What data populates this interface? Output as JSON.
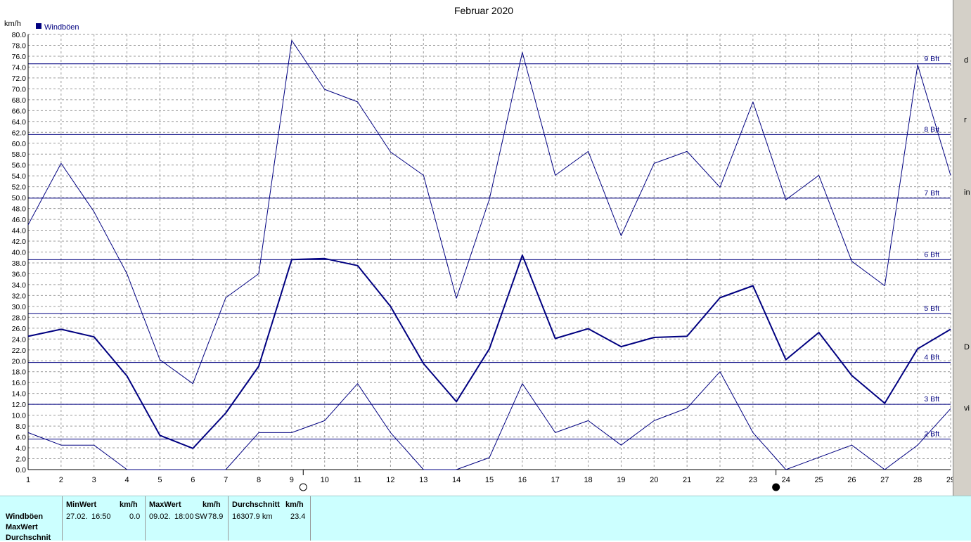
{
  "chart_data": {
    "type": "line",
    "title": "Februar 2020",
    "ylabel": "km/h",
    "xlabel": "",
    "ylim": [
      0,
      80
    ],
    "y_step": 2,
    "x_ticks": [
      1,
      2,
      3,
      4,
      5,
      6,
      7,
      8,
      9,
      10,
      11,
      12,
      13,
      14,
      15,
      16,
      17,
      18,
      19,
      20,
      21,
      22,
      23,
      24,
      25,
      26,
      27,
      28,
      29
    ],
    "grid": true,
    "legend": {
      "position": "top-left",
      "entries": [
        {
          "label": "Windböen",
          "color": "#000080"
        }
      ]
    },
    "series": [
      {
        "role": "max",
        "width": 1,
        "color": "#000080",
        "x": [
          1,
          2,
          3,
          4,
          5,
          6,
          7,
          8,
          9,
          10,
          11,
          12,
          13,
          14,
          15,
          16,
          17,
          18,
          19,
          20,
          21,
          22,
          23,
          24,
          25,
          26,
          27,
          28,
          29
        ],
        "values": [
          45,
          56.3,
          47.4,
          36,
          20.2,
          15.8,
          31.6,
          36,
          78.9,
          69.9,
          67.6,
          58.4,
          54.1,
          31.5,
          49.7,
          76.7,
          54.1,
          58.5,
          43,
          56.3,
          58.5,
          51.9,
          67.6,
          49.6,
          54.1,
          38.3,
          33.8,
          74.4,
          54.1
        ]
      },
      {
        "role": "avg",
        "width": 2,
        "color": "#000080",
        "x": [
          1,
          2,
          3,
          4,
          5,
          6,
          7,
          8,
          9,
          10,
          11,
          12,
          13,
          14,
          15,
          16,
          17,
          18,
          19,
          20,
          21,
          22,
          23,
          24,
          25,
          26,
          27,
          28,
          29
        ],
        "values": [
          24.5,
          25.8,
          24.4,
          17.2,
          6.3,
          3.9,
          10.4,
          19,
          38.6,
          38.8,
          37.5,
          30,
          19.5,
          12.5,
          22.2,
          39.4,
          24.1,
          25.9,
          22.6,
          24.3,
          24.5,
          31.6,
          33.8,
          20.2,
          25.2,
          17.3,
          12.2,
          22.2,
          25.8
        ]
      },
      {
        "role": "min",
        "width": 1,
        "color": "#000080",
        "x": [
          1,
          2,
          3,
          4,
          5,
          6,
          7,
          8,
          9,
          10,
          11,
          12,
          13,
          14,
          15,
          16,
          17,
          18,
          19,
          20,
          21,
          22,
          23,
          24,
          25,
          26,
          27,
          28,
          29
        ],
        "values": [
          6.8,
          4.5,
          4.5,
          0,
          null,
          null,
          0,
          6.8,
          6.8,
          9,
          15.8,
          6.8,
          0,
          0,
          2.2,
          15.8,
          6.8,
          9,
          4.5,
          9,
          11.3,
          18,
          6.8,
          0,
          null,
          4.5,
          0,
          4.5,
          11.2
        ]
      }
    ],
    "annotations": [
      {
        "type": "hline",
        "y": 74.6,
        "label": "9 Bft"
      },
      {
        "type": "hline",
        "y": 61.6,
        "label": "8 Bft"
      },
      {
        "type": "hline",
        "y": 49.9,
        "label": "7 Bft"
      },
      {
        "type": "hline",
        "y": 38.6,
        "label": "6 Bft"
      },
      {
        "type": "hline",
        "y": 28.7,
        "label": "5 Bft"
      },
      {
        "type": "hline",
        "y": 19.7,
        "label": "4 Bft"
      },
      {
        "type": "hline",
        "y": 12.0,
        "label": "3 Bft"
      },
      {
        "type": "hline",
        "y": 5.6,
        "label": "2 Bft"
      }
    ],
    "moon_phases": [
      {
        "x": 9.35,
        "phase": "full-moon",
        "icon": "full-moon-icon"
      },
      {
        "x": 23.7,
        "phase": "new-moon",
        "icon": "new-moon-icon"
      }
    ]
  },
  "stats": {
    "row_labels": [
      "Windböen",
      "MaxWert",
      "Durchschnit"
    ],
    "min": {
      "header": "MinWert",
      "unit": "km/h",
      "date": "27.02.",
      "time": "16:50",
      "value": "0.0"
    },
    "max": {
      "header": "MaxWert",
      "unit": "km/h",
      "date": "09.02.",
      "time": "18:00",
      "dir": "SW",
      "value": "78.9"
    },
    "avg": {
      "header": "Durchschnitt",
      "unit": "km/h",
      "distance": "16307.9 km",
      "value": "23.4"
    }
  },
  "right_fragments": [
    "d",
    "r",
    "in",
    "D",
    "vi"
  ]
}
